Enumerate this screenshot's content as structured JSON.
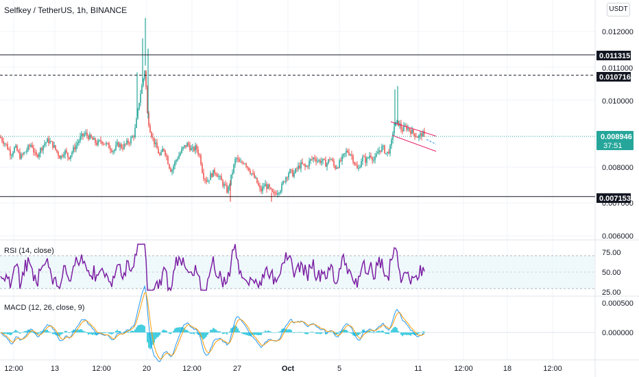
{
  "header": {
    "title": "Selfkey / TetherUS, 1h, BINANCE",
    "currency_button": "USDT"
  },
  "price_scale": {
    "ticks": [
      "0.012000",
      "0.011000",
      "0.010000",
      "0.008000",
      "0.007000",
      "0.006000"
    ]
  },
  "levels": [
    {
      "id": "res1",
      "value": "0.011315",
      "style": "solid"
    },
    {
      "id": "res2",
      "value": "0.010716",
      "style": "dashed"
    },
    {
      "id": "sup1",
      "value": "0.007153",
      "style": "solid"
    }
  ],
  "last_price": {
    "value": "0.008946",
    "countdown": "37:51",
    "color": "#26a69a"
  },
  "rsi": {
    "title": "RSI (14, close)",
    "ticks": [
      "75.00",
      "50.00",
      "25.00"
    ],
    "color": "#7b1fa2"
  },
  "macd": {
    "title": "MACD (12, 26, close, 9)",
    "ticks": [
      "0.000500",
      "0.000000"
    ],
    "macd_color": "#2196f3",
    "signal_color": "#ff9800",
    "hist_color": "#26c6da"
  },
  "time_axis": {
    "labels": [
      "12:00",
      "13",
      "12:00",
      "20",
      "12:00",
      "27",
      "Oct",
      "5",
      "11",
      "12:00",
      "18",
      "12:00"
    ]
  },
  "colors": {
    "up": "#26a69a",
    "down": "#ef5350",
    "channel": "#e91e63",
    "grid": "#f0f3fa"
  },
  "chart_data": {
    "type": "candlestick",
    "symbol": "Selfkey / TetherUS",
    "interval": "1h",
    "exchange": "BINANCE",
    "ylim": [
      0.0058,
      0.0126
    ],
    "close_path": [
      [
        0,
        0.0089
      ],
      [
        8,
        0.0087
      ],
      [
        16,
        0.0084
      ],
      [
        22,
        0.0086
      ],
      [
        30,
        0.0083
      ],
      [
        38,
        0.0085
      ],
      [
        46,
        0.0087
      ],
      [
        52,
        0.0083
      ],
      [
        58,
        0.0085
      ],
      [
        64,
        0.0087
      ],
      [
        70,
        0.0088
      ],
      [
        76,
        0.0087
      ],
      [
        82,
        0.0085
      ],
      [
        88,
        0.0083
      ],
      [
        94,
        0.0085
      ],
      [
        100,
        0.0083
      ],
      [
        106,
        0.0085
      ],
      [
        112,
        0.0087
      ],
      [
        118,
        0.0089
      ],
      [
        124,
        0.009
      ],
      [
        130,
        0.0089
      ],
      [
        136,
        0.0088
      ],
      [
        142,
        0.0087
      ],
      [
        148,
        0.0088
      ],
      [
        154,
        0.0087
      ],
      [
        160,
        0.0086
      ],
      [
        166,
        0.0085
      ],
      [
        172,
        0.0087
      ],
      [
        178,
        0.0086
      ],
      [
        184,
        0.0087
      ],
      [
        190,
        0.0088
      ],
      [
        196,
        0.009
      ],
      [
        200,
        0.0095
      ],
      [
        204,
        0.0101
      ],
      [
        208,
        0.0105
      ],
      [
        212,
        0.011
      ],
      [
        214,
        0.0097
      ],
      [
        218,
        0.0092
      ],
      [
        222,
        0.0089
      ],
      [
        226,
        0.0087
      ],
      [
        230,
        0.0085
      ],
      [
        234,
        0.0083
      ],
      [
        238,
        0.0086
      ],
      [
        242,
        0.0084
      ],
      [
        246,
        0.0081
      ],
      [
        250,
        0.0079
      ],
      [
        256,
        0.0082
      ],
      [
        262,
        0.0084
      ],
      [
        268,
        0.0086
      ],
      [
        274,
        0.0087
      ],
      [
        280,
        0.0085
      ],
      [
        286,
        0.0086
      ],
      [
        292,
        0.0083
      ],
      [
        296,
        0.0078
      ],
      [
        302,
        0.0076
      ],
      [
        308,
        0.0078
      ],
      [
        314,
        0.0079
      ],
      [
        320,
        0.0077
      ],
      [
        326,
        0.0075
      ],
      [
        332,
        0.0073
      ],
      [
        338,
        0.0078
      ],
      [
        344,
        0.0083
      ],
      [
        350,
        0.0081
      ],
      [
        356,
        0.0082
      ],
      [
        362,
        0.008
      ],
      [
        368,
        0.0078
      ],
      [
        374,
        0.0076
      ],
      [
        380,
        0.0073
      ],
      [
        386,
        0.0075
      ],
      [
        392,
        0.0074
      ],
      [
        398,
        0.0072
      ],
      [
        404,
        0.0073
      ],
      [
        410,
        0.0074
      ],
      [
        416,
        0.0077
      ],
      [
        422,
        0.0079
      ],
      [
        428,
        0.0078
      ],
      [
        434,
        0.008
      ],
      [
        440,
        0.0081
      ],
      [
        446,
        0.008
      ],
      [
        452,
        0.0082
      ],
      [
        458,
        0.0083
      ],
      [
        464,
        0.0082
      ],
      [
        470,
        0.0082
      ],
      [
        476,
        0.0081
      ],
      [
        482,
        0.0083
      ],
      [
        488,
        0.008
      ],
      [
        494,
        0.0081
      ],
      [
        500,
        0.0083
      ],
      [
        506,
        0.0085
      ],
      [
        512,
        0.0084
      ],
      [
        518,
        0.0081
      ],
      [
        522,
        0.0079
      ],
      [
        528,
        0.0083
      ],
      [
        534,
        0.0082
      ],
      [
        540,
        0.0084
      ],
      [
        546,
        0.0082
      ],
      [
        552,
        0.0085
      ],
      [
        558,
        0.0086
      ],
      [
        564,
        0.0084
      ],
      [
        570,
        0.0086
      ],
      [
        574,
        0.0092
      ],
      [
        578,
        0.0093
      ],
      [
        582,
        0.0093
      ],
      [
        586,
        0.0091
      ],
      [
        592,
        0.0092
      ],
      [
        598,
        0.0091
      ],
      [
        604,
        0.009
      ],
      [
        610,
        0.0089
      ],
      [
        616,
        0.009
      ],
      [
        620,
        0.0089
      ]
    ],
    "spikes": [
      [
        208,
        0.0118
      ],
      [
        212,
        0.0124
      ],
      [
        216,
        0.0115
      ],
      [
        200,
        0.0108
      ],
      [
        576,
        0.0103
      ],
      [
        580,
        0.0104
      ],
      [
        336,
        0.007
      ],
      [
        396,
        0.007
      ]
    ],
    "channel": {
      "upper": [
        [
          570,
          0.00935
        ],
        [
          636,
          0.00893
        ]
      ],
      "lower": [
        [
          572,
          0.00895
        ],
        [
          636,
          0.00848
        ]
      ],
      "projection": [
        [
          622,
          0.00883
        ],
        [
          636,
          0.00869
        ]
      ]
    },
    "rsi_range": [
      0,
      100
    ],
    "macd_range": [
      -0.0007,
      0.0006
    ],
    "time_labels": [
      "12:00",
      "13",
      "12:00",
      "20",
      "12:00",
      "27",
      "Oct",
      "5",
      "11",
      "12:00",
      "18",
      "12:00"
    ]
  }
}
